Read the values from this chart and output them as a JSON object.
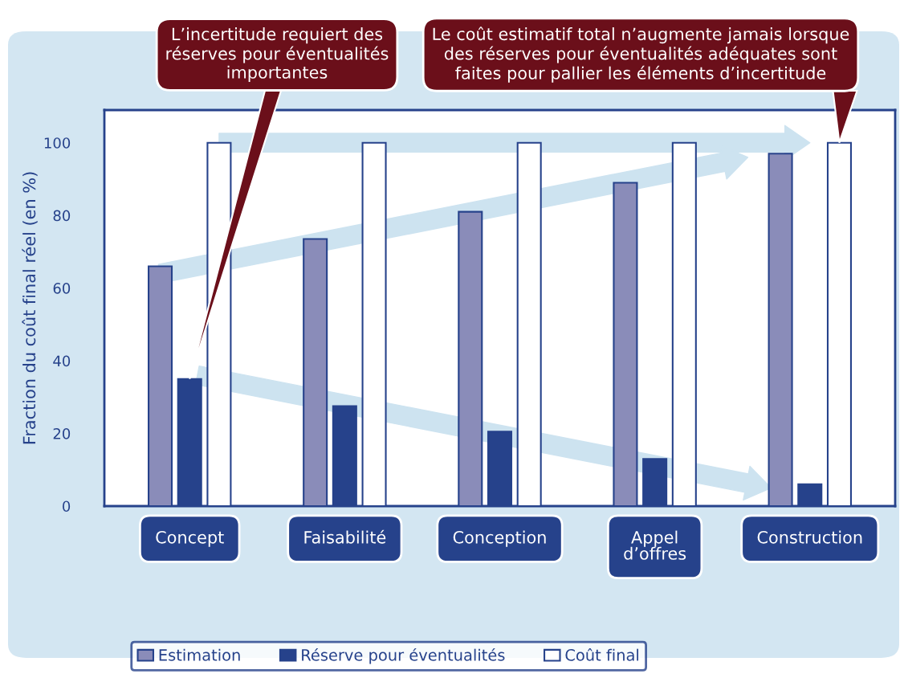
{
  "chart_data": {
    "type": "bar",
    "ylabel": "Fraction du coût final réel (en %)",
    "categories": [
      "Concept",
      "Faisabilité",
      "Conception",
      "Appel\nd’offres",
      "Construction"
    ],
    "series": [
      {
        "name": "Estimation",
        "color": "#8a8cb9",
        "values": [
          66,
          73.5,
          81,
          89,
          97
        ]
      },
      {
        "name": "Réserve pour éventualités",
        "color": "#26428b",
        "values": [
          35,
          27.5,
          20.5,
          13,
          6
        ]
      },
      {
        "name": "Coût final",
        "color": "#ffffff",
        "values": [
          100,
          100,
          100,
          100,
          100
        ]
      }
    ],
    "ylim": [
      0,
      109
    ],
    "yticks": [
      0,
      20,
      40,
      60,
      80,
      100
    ],
    "grid": false,
    "legend": "bottom",
    "annotations": [
      "L’incertitude requiert des\nréserves pour éventualités\nimportantes",
      "Le coût estimatif total n’augmente jamais lorsque\ndes réserves pour éventualités adéquates sont\nfaites pour pallier les éléments d’incertitude"
    ]
  }
}
